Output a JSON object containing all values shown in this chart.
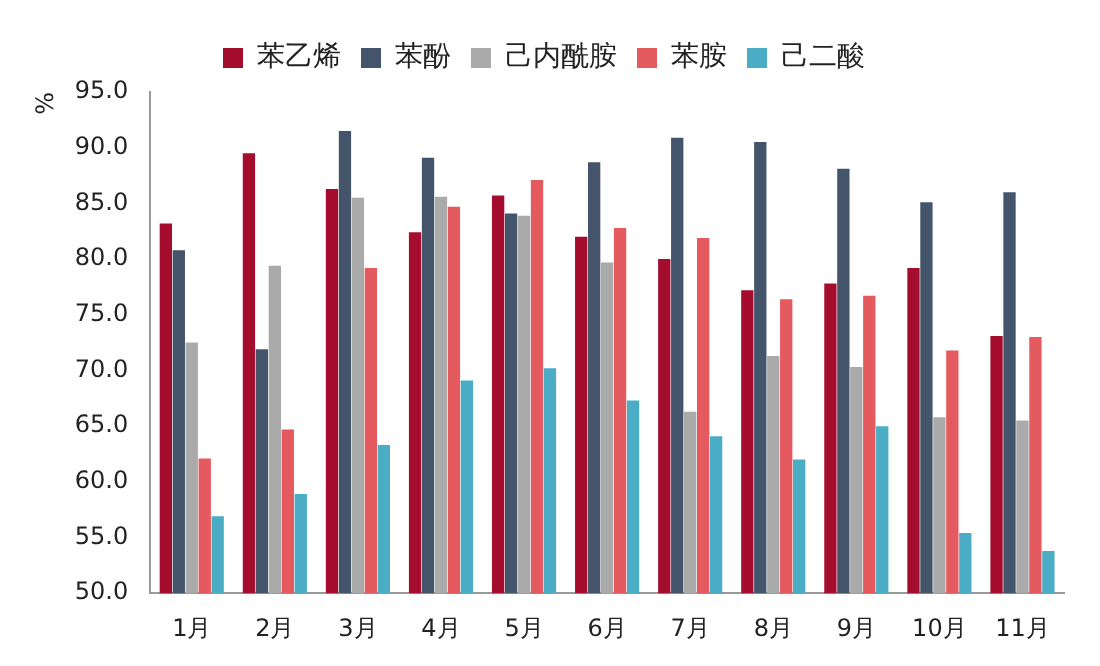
{
  "chart_data": {
    "type": "bar",
    "ylabel": "%",
    "categories": [
      "1月",
      "2月",
      "3月",
      "4月",
      "5月",
      "6月",
      "7月",
      "8月",
      "9月",
      "10月",
      "11月"
    ],
    "series": [
      {
        "name": "苯乙烯",
        "color": "#a50d2f",
        "values": [
          83.2,
          89.5,
          86.3,
          82.4,
          85.7,
          82.0,
          80.0,
          77.2,
          77.8,
          79.2,
          73.1
        ]
      },
      {
        "name": "苯酚",
        "color": "#44546a",
        "values": [
          80.8,
          71.9,
          91.5,
          89.1,
          84.1,
          88.7,
          90.9,
          90.5,
          88.1,
          85.1,
          86.0
        ]
      },
      {
        "name": "己内酰胺",
        "color": "#aaaaaa",
        "values": [
          72.5,
          79.4,
          85.5,
          85.6,
          83.9,
          79.7,
          66.3,
          71.3,
          70.3,
          65.8,
          65.5
        ]
      },
      {
        "name": "苯胺",
        "color": "#e45a5f",
        "values": [
          62.1,
          64.7,
          79.2,
          84.7,
          87.1,
          82.8,
          81.9,
          76.4,
          76.7,
          71.8,
          73.0
        ]
      },
      {
        "name": "己二酸",
        "color": "#4bacc6",
        "values": [
          56.9,
          58.9,
          63.3,
          69.1,
          70.2,
          67.3,
          64.1,
          62.0,
          65.0,
          55.4,
          53.8
        ]
      }
    ],
    "ylim": [
      50,
      95
    ],
    "yticks": [
      {
        "value": 50,
        "label": "50.0"
      },
      {
        "value": 55,
        "label": "55.0"
      },
      {
        "value": 60,
        "label": "60.0"
      },
      {
        "value": 65,
        "label": "65.0"
      },
      {
        "value": 70,
        "label": "70.0"
      },
      {
        "value": 75,
        "label": "75.0"
      },
      {
        "value": 80,
        "label": "80.0"
      },
      {
        "value": 85,
        "label": "85.0"
      },
      {
        "value": 90,
        "label": "90.0"
      },
      {
        "value": 95,
        "label": "95.0"
      }
    ],
    "grid": false,
    "legend": "top"
  }
}
